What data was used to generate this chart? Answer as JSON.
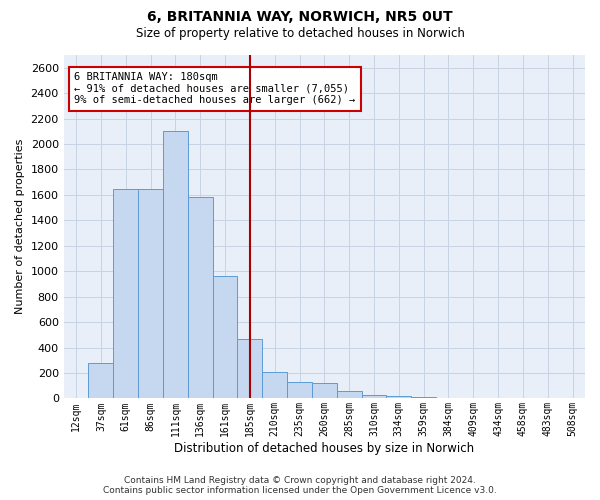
{
  "title_line1": "6, BRITANNIA WAY, NORWICH, NR5 0UT",
  "title_line2": "Size of property relative to detached houses in Norwich",
  "xlabel": "Distribution of detached houses by size in Norwich",
  "ylabel": "Number of detached properties",
  "bar_labels": [
    "12sqm",
    "37sqm",
    "61sqm",
    "86sqm",
    "111sqm",
    "136sqm",
    "161sqm",
    "185sqm",
    "210sqm",
    "235sqm",
    "260sqm",
    "285sqm",
    "310sqm",
    "334sqm",
    "359sqm",
    "384sqm",
    "409sqm",
    "434sqm",
    "458sqm",
    "483sqm",
    "508sqm"
  ],
  "bar_values": [
    5,
    280,
    1650,
    1650,
    2100,
    1580,
    960,
    465,
    210,
    130,
    120,
    55,
    30,
    18,
    12,
    5,
    5,
    5,
    3,
    3,
    2
  ],
  "bar_color": "#c5d8ef",
  "bar_edge_color": "#5b9bd5",
  "vline_index": 7,
  "vline_color": "#aa0000",
  "annotation_text": "6 BRITANNIA WAY: 180sqm\n← 91% of detached houses are smaller (7,055)\n9% of semi-detached houses are larger (662) →",
  "annotation_box_color": "#ffffff",
  "annotation_box_edge_color": "#cc0000",
  "ylim": [
    0,
    2700
  ],
  "yticks": [
    0,
    200,
    400,
    600,
    800,
    1000,
    1200,
    1400,
    1600,
    1800,
    2000,
    2200,
    2400,
    2600
  ],
  "grid_color": "#c8d4e4",
  "background_color": "#e8eff8",
  "footer_line1": "Contains HM Land Registry data © Crown copyright and database right 2024.",
  "footer_line2": "Contains public sector information licensed under the Open Government Licence v3.0."
}
